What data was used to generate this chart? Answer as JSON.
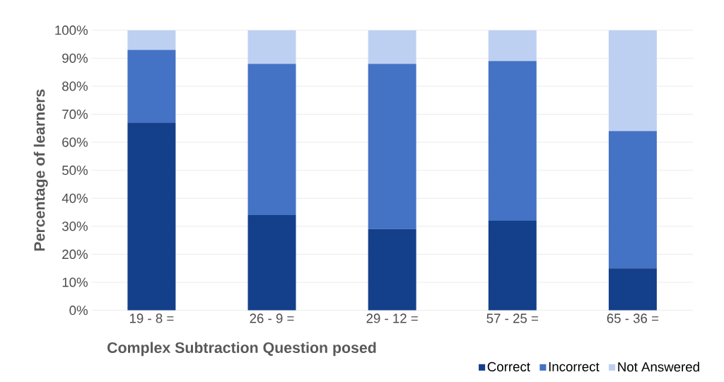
{
  "chart_data": {
    "type": "bar",
    "stacked": true,
    "xlabel": "Complex  Subtraction Question posed",
    "ylabel": "Percentage of learners",
    "categories": [
      "19 - 8 =",
      "26 - 9 =",
      "29 - 12 =",
      "57 - 25 =",
      "65 - 36 ="
    ],
    "series": [
      {
        "name": "Correct",
        "color": "#143f8a",
        "values": [
          67,
          34,
          29,
          32,
          15
        ]
      },
      {
        "name": "Incorrect",
        "color": "#4472c4",
        "values": [
          26,
          54,
          59,
          57,
          49
        ]
      },
      {
        "name": "Not Answered",
        "color": "#bdd0f2",
        "values": [
          7,
          12,
          12,
          11,
          36
        ]
      }
    ],
    "ylim": [
      0,
      100
    ],
    "yticks": [
      {
        "value": 0,
        "label": "0%"
      },
      {
        "value": 10,
        "label": "10%"
      },
      {
        "value": 20,
        "label": "20%"
      },
      {
        "value": 30,
        "label": "30%"
      },
      {
        "value": 40,
        "label": "40%"
      },
      {
        "value": 50,
        "label": "50%"
      },
      {
        "value": 60,
        "label": "60%"
      },
      {
        "value": 70,
        "label": "70%"
      },
      {
        "value": 80,
        "label": "80%"
      },
      {
        "value": 90,
        "label": "90%"
      },
      {
        "value": 100,
        "label": "100%"
      }
    ],
    "grid": "y",
    "legend": "bottom"
  }
}
